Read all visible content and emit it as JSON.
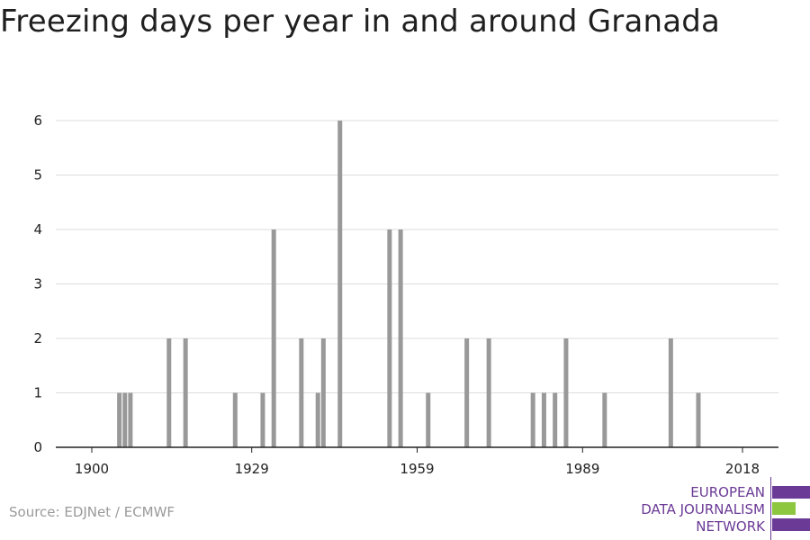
{
  "title": "Freezing days per year in and around Granada",
  "source": "Source: EDJNet / ECMWF",
  "logo": {
    "line1": "EUROPEAN",
    "line2": "DATA JOURNALISM",
    "line3": "NETWORK"
  },
  "colors": {
    "bar": "#999999",
    "grid": "#dddddd",
    "axis": "#222222",
    "logo_purple": "#6b3a96",
    "logo_green": "#8dc63f"
  },
  "chart_data": {
    "type": "bar",
    "title": "Freezing days per year in and around Granada",
    "xlabel": "",
    "ylabel": "",
    "xlim": [
      1900,
      2018
    ],
    "ylim": [
      0,
      6
    ],
    "x_ticks": [
      1900,
      1929,
      1959,
      1989,
      2018
    ],
    "y_ticks": [
      0,
      1,
      2,
      3,
      4,
      5,
      6
    ],
    "grid": "horizontal",
    "x": [
      1905,
      1906,
      1907,
      1914,
      1917,
      1926,
      1931,
      1933,
      1938,
      1941,
      1942,
      1945,
      1954,
      1956,
      1961,
      1968,
      1972,
      1980,
      1982,
      1984,
      1986,
      1993,
      2005,
      2010
    ],
    "values": [
      1,
      1,
      1,
      2,
      2,
      1,
      1,
      4,
      2,
      1,
      2,
      6,
      4,
      4,
      1,
      2,
      2,
      1,
      1,
      1,
      2,
      1,
      2,
      1
    ]
  }
}
